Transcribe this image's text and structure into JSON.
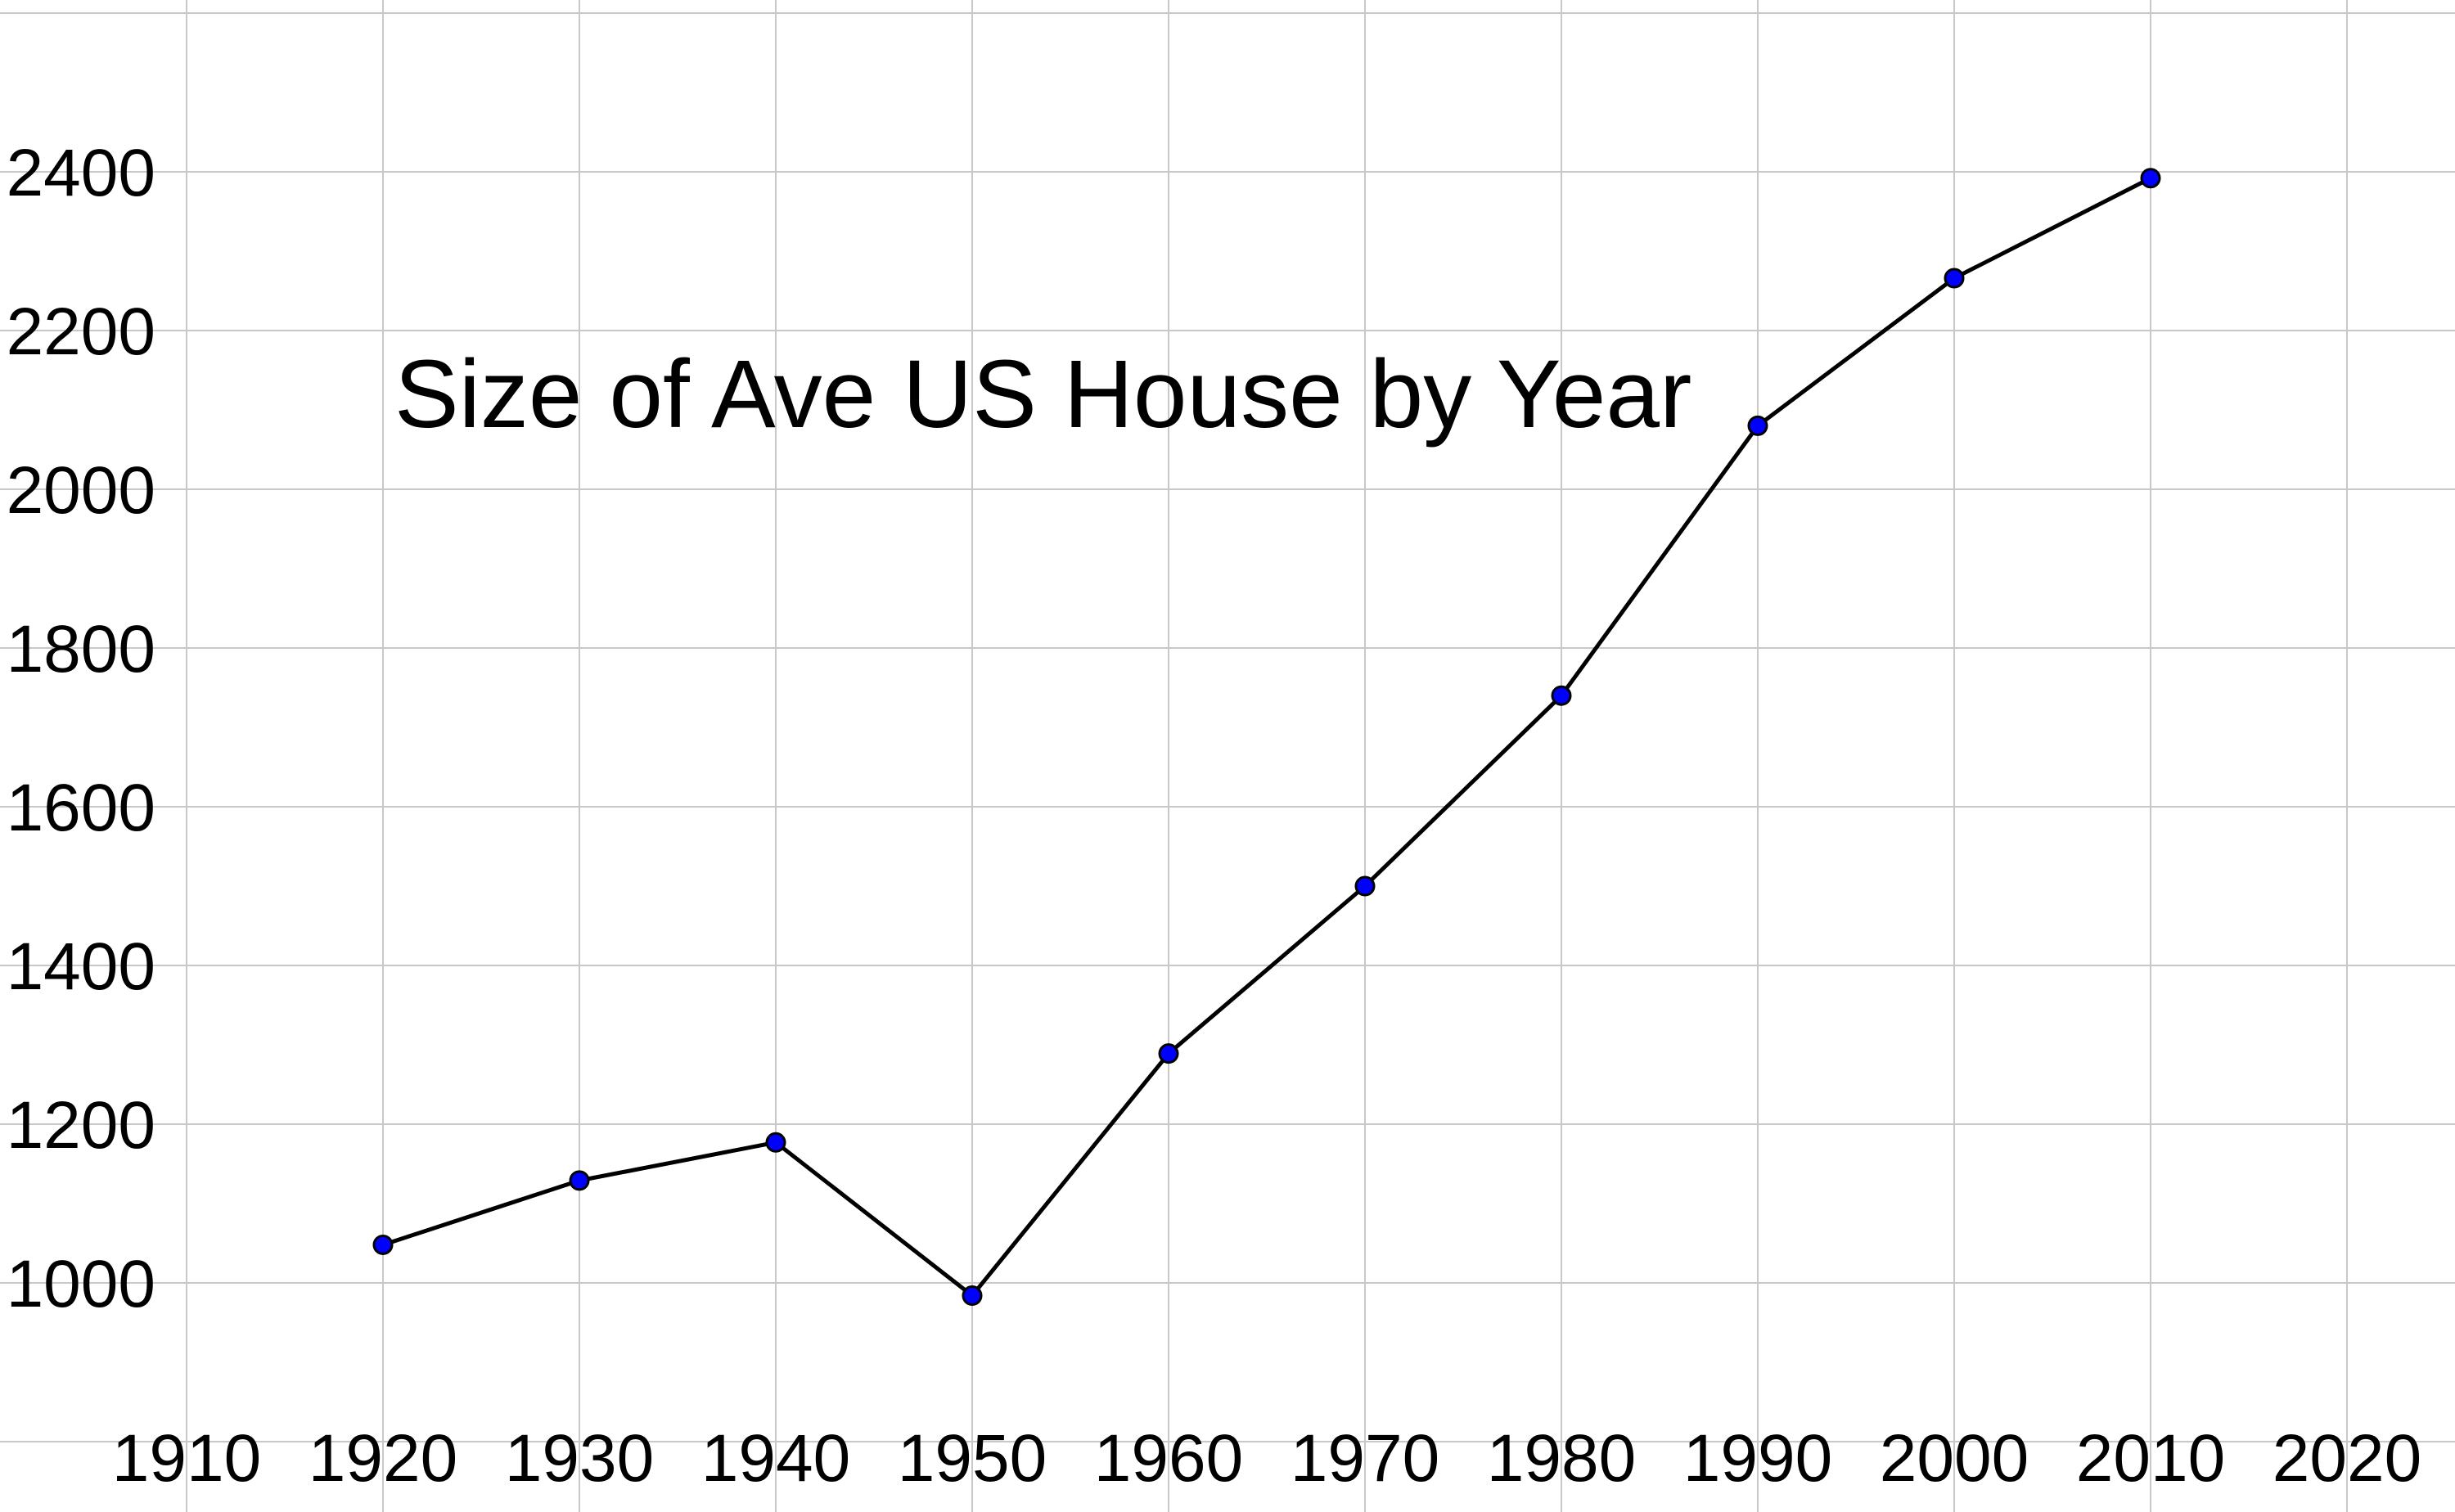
{
  "chart_data": {
    "type": "line",
    "title": "Size of Ave US House by Year",
    "xlabel": "",
    "ylabel": "",
    "xlim": [
      1900,
      2025
    ],
    "ylim": [
      800,
      2620
    ],
    "xticks": [
      1910,
      1920,
      1930,
      1940,
      1950,
      1960,
      1970,
      1980,
      1990,
      2000,
      2010,
      2020
    ],
    "yticks": [
      1000,
      1200,
      1400,
      1600,
      1800,
      2000,
      2200,
      2400
    ],
    "grid": true,
    "legend": "none",
    "series": [
      {
        "x": [
          1920,
          1930,
          1940,
          1950,
          1960,
          1970,
          1980,
          1990,
          2000,
          2010
        ],
        "y": [
          1048,
          1129,
          1177,
          984,
          1289,
          1500,
          1740,
          2080,
          2266,
          2392
        ],
        "line_color": "#000000",
        "marker_color": "#0000ff"
      }
    ]
  }
}
